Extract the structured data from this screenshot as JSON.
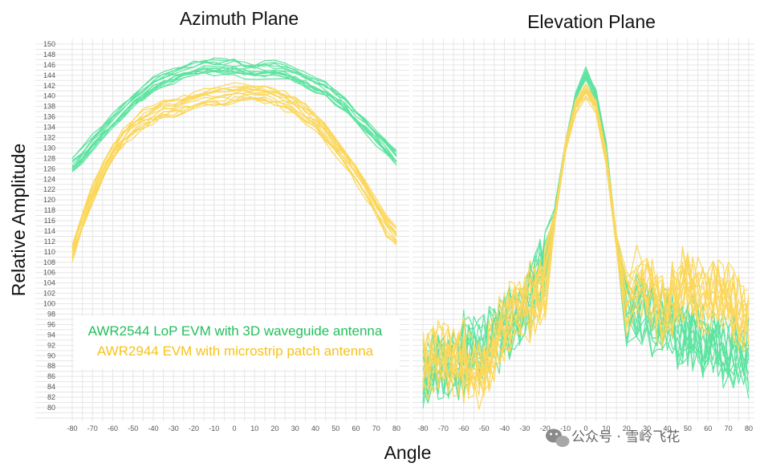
{
  "watermark": "公众号 · 雪岭飞花",
  "legend": {
    "series": [
      {
        "name": "AWR2544 LoP EVM with 3D waveguide antenna",
        "color": "#22bf5a"
      },
      {
        "name": "AWR2944 EVM with microstrip patch antenna",
        "color": "#f7c21b"
      }
    ]
  },
  "colors": {
    "green_line": "#5ee3a0",
    "yellow_line": "#fbd75a"
  },
  "chart_data": [
    {
      "type": "line",
      "title": "Azimuth Plane",
      "xlabel": "Angle",
      "ylabel": "Relative Amplitude",
      "xlim": [
        -80,
        80
      ],
      "ylim": [
        80,
        150
      ],
      "xticks": [
        -80,
        -70,
        -60,
        -50,
        -40,
        -30,
        -20,
        -10,
        0,
        10,
        20,
        30,
        40,
        50,
        60,
        70,
        80
      ],
      "yticks": [
        80,
        82,
        84,
        86,
        88,
        90,
        92,
        94,
        96,
        98,
        100,
        102,
        104,
        106,
        108,
        110,
        112,
        114,
        116,
        118,
        120,
        122,
        124,
        126,
        128,
        130,
        132,
        134,
        136,
        138,
        140,
        142,
        144,
        146,
        148,
        150
      ],
      "grid": true,
      "x": [
        -80,
        -75,
        -70,
        -65,
        -60,
        -55,
        -50,
        -45,
        -40,
        -35,
        -30,
        -25,
        -20,
        -15,
        -10,
        -5,
        0,
        5,
        10,
        15,
        20,
        25,
        30,
        35,
        40,
        45,
        50,
        55,
        60,
        65,
        70,
        75,
        80
      ],
      "series": [
        {
          "name": "AWR2544 LoP EVM with 3D waveguide antenna",
          "traces": 14,
          "values": [
            126.5,
            128.5,
            131,
            133,
            135,
            137,
            139,
            140.5,
            142,
            143,
            144,
            144.5,
            145,
            145.5,
            145.5,
            145.5,
            145.5,
            145,
            145,
            145,
            145,
            144.5,
            144,
            143,
            142,
            141,
            139.5,
            138,
            136,
            134,
            132,
            130,
            128
          ]
        },
        {
          "name": "AWR2944 EVM with microstrip patch antenna",
          "traces": 14,
          "values": [
            110,
            116,
            121,
            125.5,
            129,
            132,
            134,
            135.5,
            136.5,
            137.5,
            138,
            138.5,
            139,
            139.5,
            140,
            140,
            140.5,
            140.5,
            140.5,
            140.5,
            140,
            139,
            138,
            136.5,
            135,
            133,
            130.5,
            128,
            125,
            122,
            118.5,
            115,
            113
          ]
        }
      ]
    },
    {
      "type": "line",
      "title": "Elevation Plane",
      "xlim": [
        -80,
        80
      ],
      "ylim": [
        80,
        150
      ],
      "xticks": [
        -80,
        -70,
        -60,
        -50,
        -40,
        -30,
        -20,
        -10,
        0,
        10,
        20,
        30,
        40,
        50,
        60,
        70,
        80
      ],
      "grid": true,
      "x": [
        -80,
        -75,
        -70,
        -65,
        -60,
        -55,
        -50,
        -45,
        -40,
        -35,
        -30,
        -25,
        -20,
        -15,
        -10,
        -5,
        0,
        5,
        10,
        15,
        20,
        25,
        30,
        35,
        40,
        45,
        50,
        55,
        60,
        65,
        70,
        75,
        80
      ],
      "series": [
        {
          "name": "AWR2544 LoP EVM with 3D waveguide antenna",
          "traces": 14,
          "values": [
            86,
            87,
            88,
            88,
            90,
            91,
            92,
            93,
            95,
            97,
            100,
            103,
            108,
            118,
            130,
            140,
            144,
            140,
            130,
            112,
            98,
            99,
            98,
            97,
            96,
            95,
            94,
            93,
            92,
            92,
            91,
            91,
            90
          ]
        },
        {
          "name": "AWR2944 EVM with microstrip patch antenna",
          "traces": 14,
          "values": [
            88,
            89,
            90,
            88,
            89,
            87,
            88,
            92,
            96,
            99,
            101,
            100,
            104,
            117,
            130,
            138,
            141,
            138,
            128,
            112,
            100,
            104,
            103,
            99,
            98,
            103,
            104,
            102,
            101,
            103,
            101,
            99,
            96
          ]
        }
      ]
    }
  ]
}
